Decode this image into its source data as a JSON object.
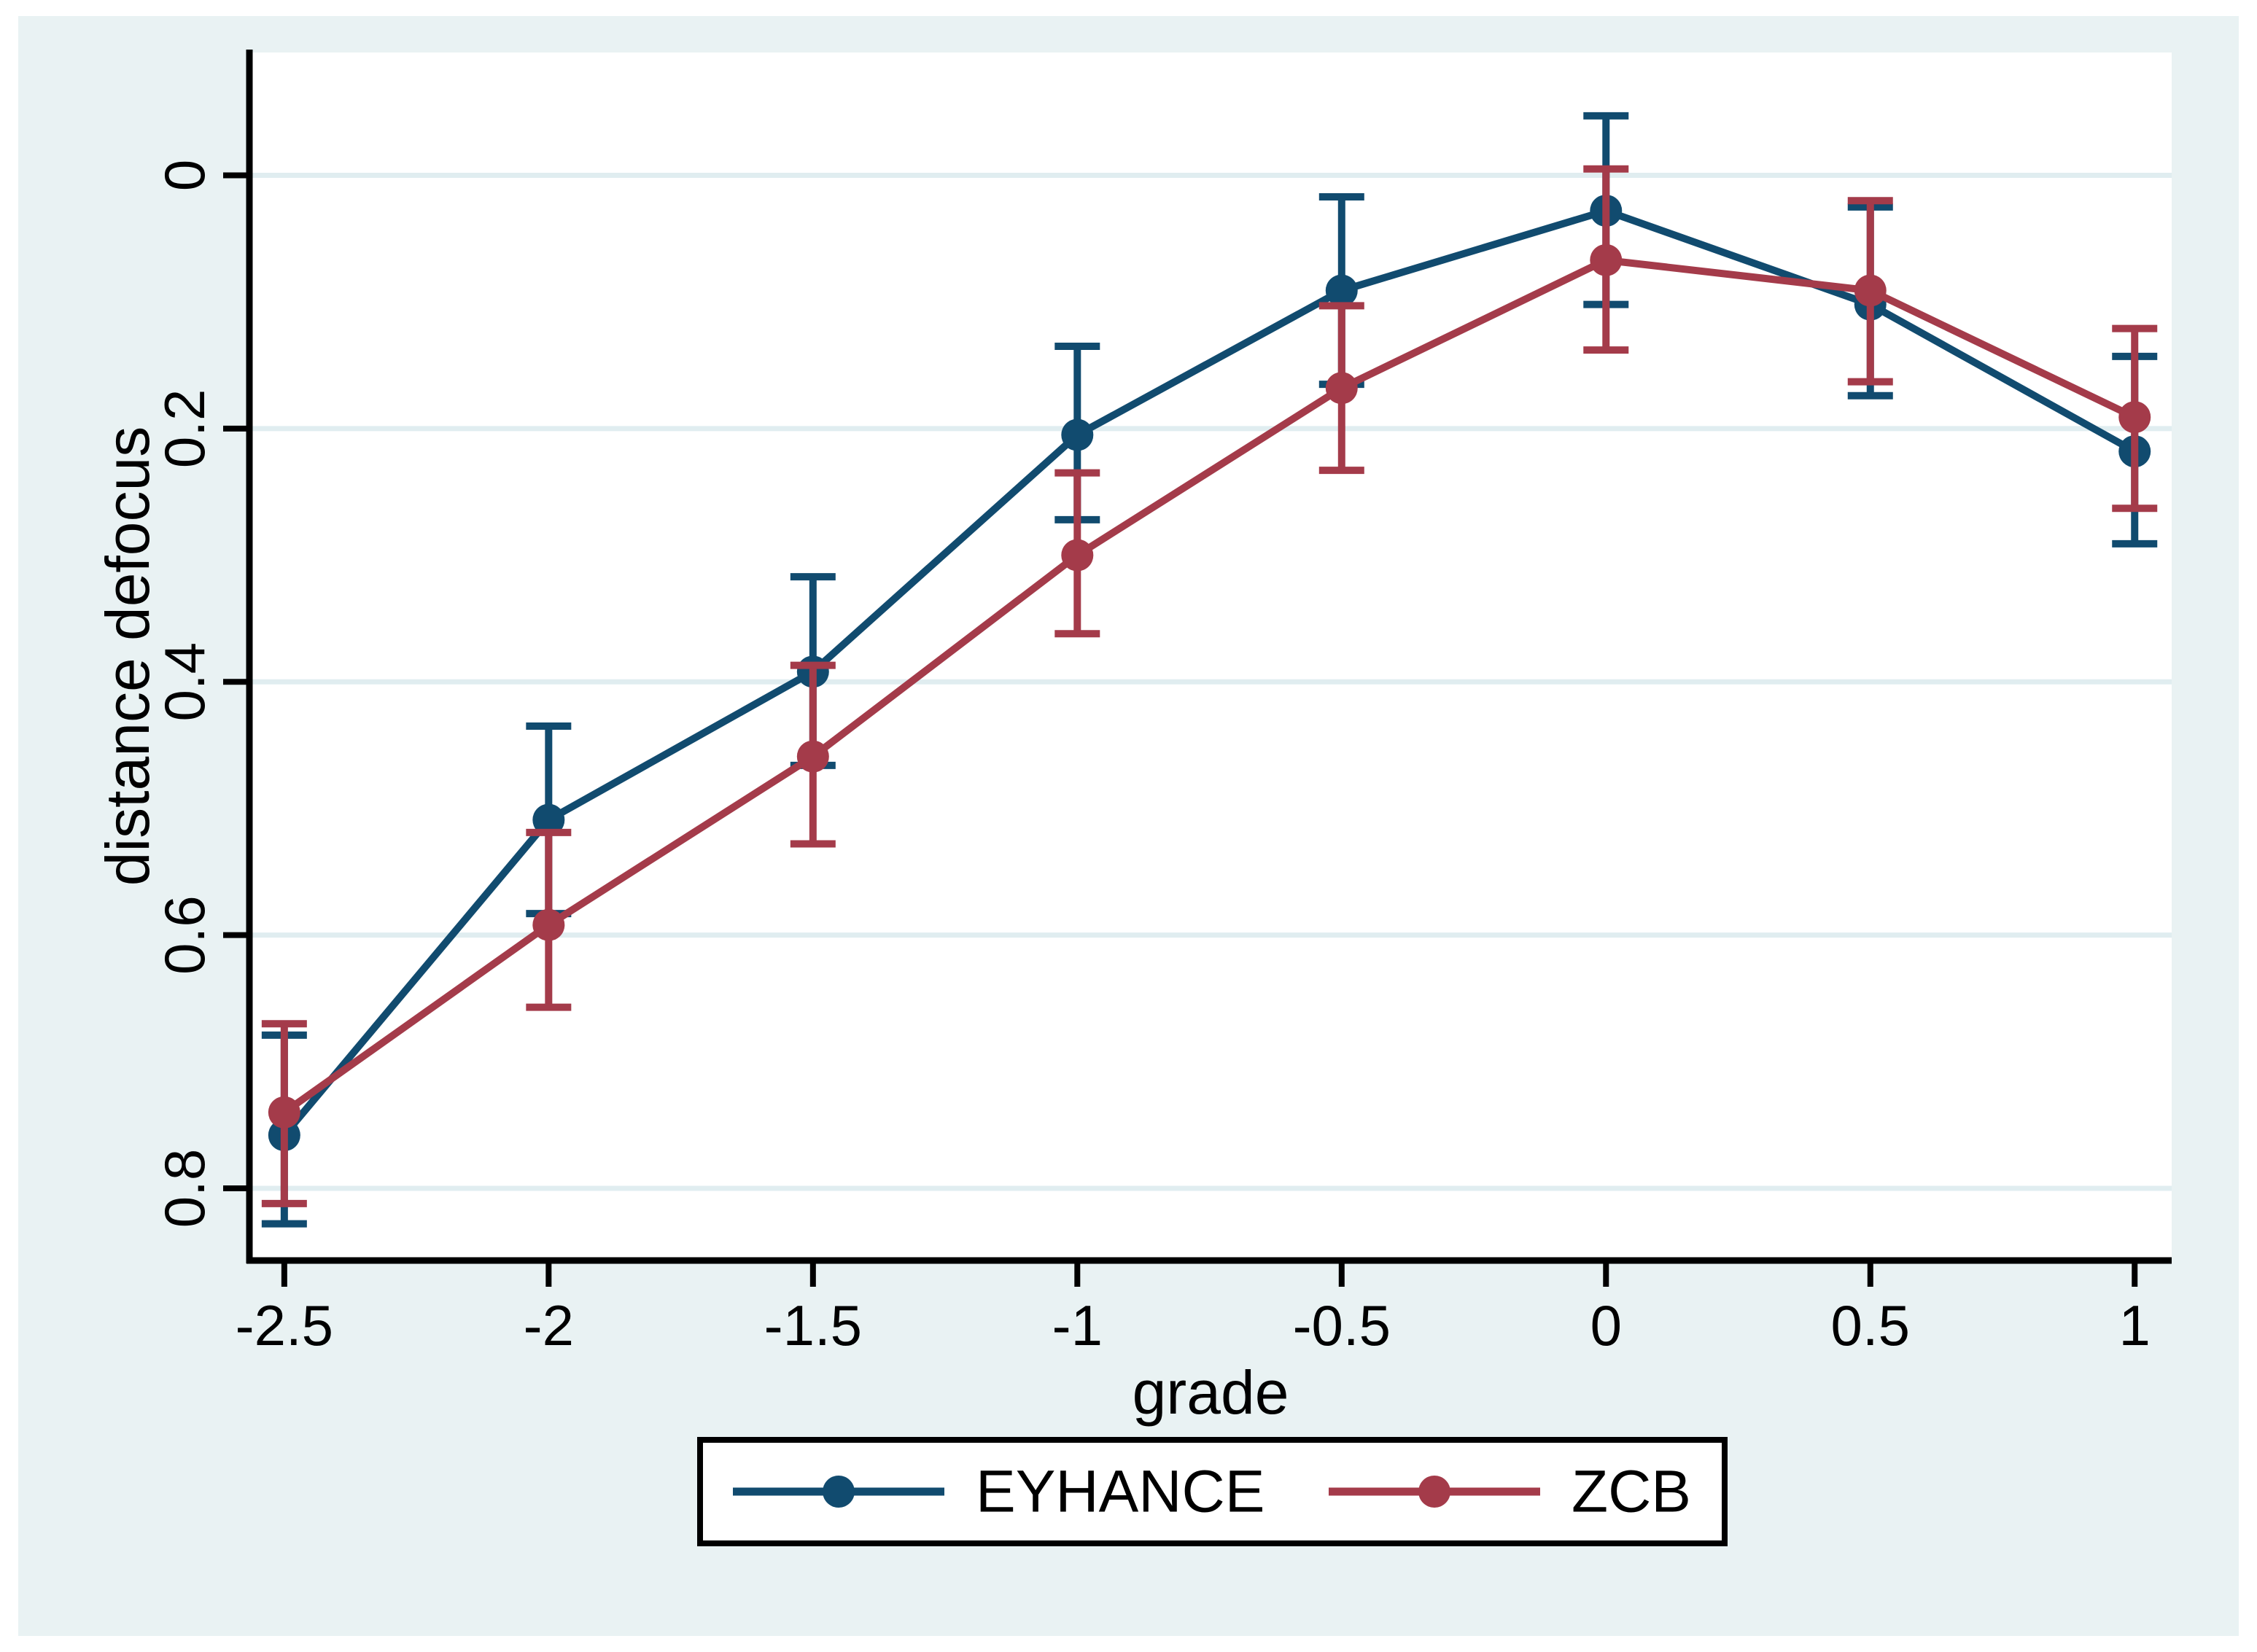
{
  "figure": {
    "page_background": "#ffffff",
    "canvas_color": "#e9f2f3",
    "plot_background": "#ffffff",
    "grid_color": "#e0edf0",
    "axis_color": "#000000"
  },
  "chart_data": {
    "type": "line",
    "title": "",
    "xlabel": "grade",
    "ylabel": "distance defocus",
    "x": [
      -2.5,
      -2,
      -1.5,
      -1,
      -0.5,
      0,
      0.5,
      1
    ],
    "xtick_labels": [
      "-2.5",
      "-2",
      "-1.5",
      "-1",
      "-0.5",
      "0",
      "0.5",
      "1"
    ],
    "yticks": [
      0,
      0.2,
      0.4,
      0.6,
      0.8
    ],
    "ytick_labels": [
      "0",
      "0.2",
      "0.4",
      "0.6",
      "0.8"
    ],
    "y_axis_reversed": true,
    "xlim": [
      -2.566,
      1.07
    ],
    "ylim": [
      -0.097,
      0.857
    ],
    "grid": "horizontal",
    "error_bars": true,
    "legend_position": "bottom-center",
    "series": [
      {
        "name": "EYHANCE",
        "color": "#114b6f",
        "values": [
          0.758,
          0.509,
          0.392,
          0.205,
          0.091,
          0.028,
          0.102,
          0.218
        ],
        "ci_low": [
          0.679,
          0.435,
          0.317,
          0.135,
          0.017,
          -0.047,
          0.025,
          0.143
        ],
        "ci_high": [
          0.828,
          0.583,
          0.466,
          0.272,
          0.165,
          0.102,
          0.174,
          0.291
        ]
      },
      {
        "name": "ZCB",
        "color": "#a43b4a",
        "values": [
          0.74,
          0.592,
          0.459,
          0.3,
          0.168,
          0.067,
          0.091,
          0.191
        ],
        "ci_low": [
          0.67,
          0.519,
          0.387,
          0.235,
          0.103,
          -0.005,
          0.02,
          0.121
        ],
        "ci_high": [
          0.812,
          0.657,
          0.528,
          0.362,
          0.233,
          0.138,
          0.163,
          0.263
        ]
      }
    ]
  }
}
